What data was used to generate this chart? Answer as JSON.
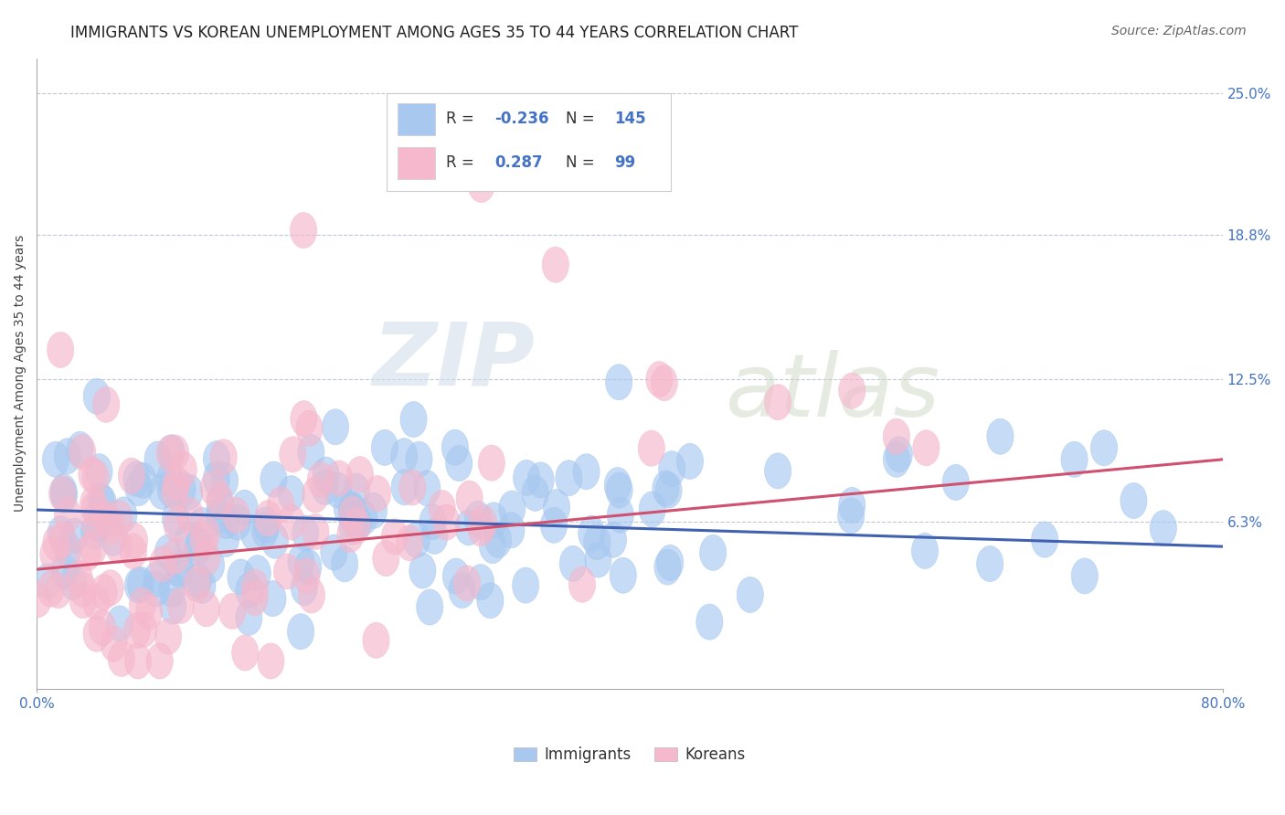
{
  "title": "IMMIGRANTS VS KOREAN UNEMPLOYMENT AMONG AGES 35 TO 44 YEARS CORRELATION CHART",
  "source": "Source: ZipAtlas.com",
  "ylabel": "Unemployment Among Ages 35 to 44 years",
  "xlim": [
    0.0,
    0.8
  ],
  "ylim": [
    -0.01,
    0.265
  ],
  "yticks": [
    0.063,
    0.125,
    0.188,
    0.25
  ],
  "ytick_labels": [
    "6.3%",
    "12.5%",
    "18.8%",
    "25.0%"
  ],
  "xtick_labels": [
    "0.0%",
    "80.0%"
  ],
  "immigrants_R": -0.236,
  "immigrants_N": 145,
  "koreans_R": 0.287,
  "koreans_N": 99,
  "immigrant_color": "#A8C8F0",
  "korean_color": "#F5B8CC",
  "immigrant_line_color": "#4060B0",
  "korean_line_color": "#D05070",
  "background_color": "#FFFFFF",
  "grid_color": "#C0C8D8",
  "watermark_zip": "ZIP",
  "watermark_atlas": "atlas",
  "title_fontsize": 12,
  "label_fontsize": 10,
  "legend_fontsize": 12,
  "source_fontsize": 10,
  "imm_line_start_y": 0.068,
  "imm_line_end_y": 0.052,
  "kor_line_start_y": 0.042,
  "kor_line_end_y": 0.09
}
